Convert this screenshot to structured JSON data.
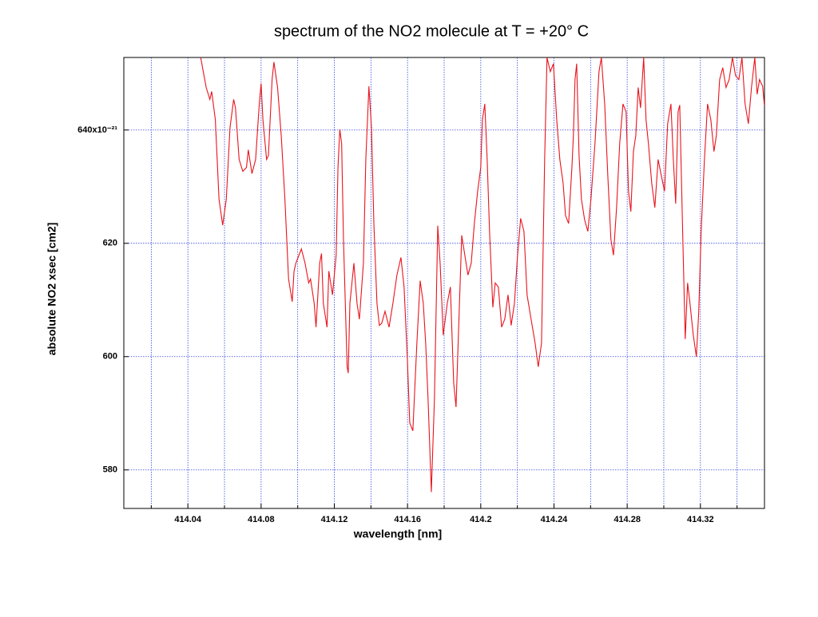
{
  "chart_data": {
    "type": "line",
    "title": "spectrum of the NO2 molecule at T = +20° C",
    "xlabel": "wavelength [nm]",
    "ylabel": "absolute NO2 xsec [cm2]",
    "xlim": [
      414.005,
      414.355
    ],
    "ylim": [
      573.2,
      652.8
    ],
    "xticks": [
      414.04,
      414.08,
      414.12,
      414.16,
      414.2,
      414.24,
      414.28,
      414.32
    ],
    "xminorticks": [
      414.02,
      414.06,
      414.1,
      414.14,
      414.18,
      414.22,
      414.26,
      414.3,
      414.34
    ],
    "yticks": [
      580,
      600,
      620,
      {
        "value": 640,
        "label": "640x10⁻²¹"
      }
    ],
    "grid": true,
    "series": [
      {
        "color": "#e8141c",
        "x": [
          414.047,
          414.05,
          414.052,
          414.053,
          414.055,
          414.057,
          414.059,
          414.061,
          414.063,
          414.065,
          414.066,
          414.068,
          414.07,
          414.072,
          414.073,
          414.075,
          414.077,
          414.079,
          414.08,
          414.081,
          414.083,
          414.084,
          414.086,
          414.087,
          414.089,
          414.091,
          414.093,
          414.095,
          414.097,
          414.098,
          414.099,
          414.102,
          414.104,
          414.106,
          414.107,
          414.109,
          414.11,
          414.112,
          414.113,
          414.114,
          414.116,
          414.117,
          414.119,
          414.121,
          414.122,
          414.123,
          414.124,
          414.125,
          414.127,
          414.1276,
          414.1285,
          414.1307,
          414.1324,
          414.1337,
          414.1359,
          414.1372,
          414.1389,
          414.1403,
          414.1416,
          414.1433,
          414.1446,
          414.1459,
          414.1477,
          414.1499,
          414.152,
          414.1542,
          414.1564,
          414.1581,
          414.1599,
          414.1612,
          414.1629,
          414.1651,
          414.1669,
          414.1686,
          414.1699,
          414.1712,
          414.173,
          414.1747,
          414.1765,
          414.1778,
          414.1795,
          414.1817,
          414.1834,
          414.1852,
          414.1865,
          414.1878,
          414.1896,
          414.1913,
          414.193,
          414.1948,
          414.1965,
          414.1983,
          414.2,
          414.2009,
          414.2022,
          414.2035,
          414.2048,
          414.2066,
          414.2079,
          414.2096,
          414.2114,
          414.2131,
          414.2149,
          414.2166,
          414.2184,
          414.2201,
          414.2218,
          414.2236,
          414.2253,
          414.2275,
          414.2297,
          414.2314,
          414.2332,
          414.2349,
          414.2362,
          414.238,
          414.2397,
          414.2415,
          414.2432,
          414.245,
          414.2463,
          414.248,
          414.2498,
          414.2506,
          414.2515,
          414.2524,
          414.2537,
          414.255,
          414.2567,
          414.2585,
          414.2602,
          414.2624,
          414.2646,
          414.2659,
          414.2677,
          414.2694,
          414.2711,
          414.2725,
          414.2742,
          414.2759,
          414.2777,
          414.2794,
          414.2807,
          414.282,
          414.2834,
          414.2847,
          414.286,
          414.2873,
          414.289,
          414.2903,
          414.2916,
          414.2934,
          414.2951,
          414.2969,
          414.2986,
          414.3004,
          414.3021,
          414.3039,
          414.3052,
          414.3065,
          414.3078,
          414.3087,
          414.3104,
          414.3117,
          414.313,
          414.3143,
          414.3161,
          414.3178,
          414.3191,
          414.3204,
          414.3222,
          414.3239,
          414.3257,
          414.3274,
          414.3287,
          414.3305,
          414.3322,
          414.334,
          414.3357,
          414.3375,
          414.3392,
          414.341,
          414.3427,
          414.3444,
          414.3462,
          414.3479,
          414.3497,
          414.351,
          414.3523,
          414.354,
          414.355
        ],
        "values": [
          652.8,
          647.5,
          645.4,
          646.8,
          641.8,
          627.8,
          623.2,
          627.8,
          640.4,
          645.4,
          643.9,
          634.8,
          632.7,
          633.4,
          636.5,
          632.3,
          634.8,
          644.6,
          648.2,
          641.8,
          634.8,
          635.5,
          648.9,
          652.0,
          647.5,
          639.0,
          627.8,
          613.7,
          609.7,
          615.1,
          616.5,
          619.0,
          616.5,
          613.0,
          613.7,
          609.4,
          605.2,
          616.5,
          618.2,
          609.4,
          605.2,
          615.1,
          610.9,
          617.9,
          633.4,
          640.1,
          637.6,
          620.7,
          598.2,
          597.1,
          609.4,
          616.5,
          609.4,
          606.6,
          616.5,
          634.8,
          647.7,
          640.4,
          623.5,
          609.4,
          605.5,
          605.9,
          608.0,
          605.2,
          609.4,
          614.4,
          617.5,
          612.3,
          599.6,
          588.3,
          586.9,
          602.4,
          613.4,
          609.4,
          602.4,
          592.6,
          576.1,
          592.6,
          623.1,
          616.5,
          603.8,
          609.4,
          612.3,
          595.4,
          591.1,
          603.8,
          621.4,
          617.9,
          614.4,
          616.5,
          623.5,
          629.2,
          633.4,
          641.8,
          644.6,
          634.8,
          622.1,
          608.7,
          613.0,
          612.3,
          605.2,
          606.6,
          610.9,
          605.5,
          609.4,
          617.9,
          624.4,
          622.1,
          610.9,
          606.6,
          602.4,
          598.2,
          602.4,
          634.8,
          652.8,
          650.3,
          651.7,
          641.8,
          634.8,
          630.6,
          624.9,
          623.5,
          633.4,
          639.0,
          648.9,
          651.7,
          635.5,
          627.8,
          624.2,
          622.1,
          627.8,
          637.6,
          650.3,
          652.8,
          644.6,
          632.0,
          620.7,
          617.9,
          626.3,
          637.6,
          644.6,
          643.2,
          629.2,
          625.6,
          636.2,
          639.0,
          647.5,
          643.9,
          652.8,
          641.8,
          637.6,
          630.6,
          626.3,
          634.8,
          632.0,
          629.2,
          641.1,
          644.6,
          634.8,
          627.0,
          643.2,
          644.4,
          620.7,
          603.1,
          613.0,
          609.4,
          603.8,
          600.0,
          608.0,
          622.1,
          634.8,
          644.6,
          641.8,
          636.2,
          639.0,
          648.9,
          651.0,
          647.5,
          648.9,
          652.8,
          649.6,
          648.9,
          652.8,
          644.6,
          641.1,
          647.5,
          652.8,
          646.3,
          648.9,
          647.7,
          644.2
        ]
      }
    ]
  }
}
